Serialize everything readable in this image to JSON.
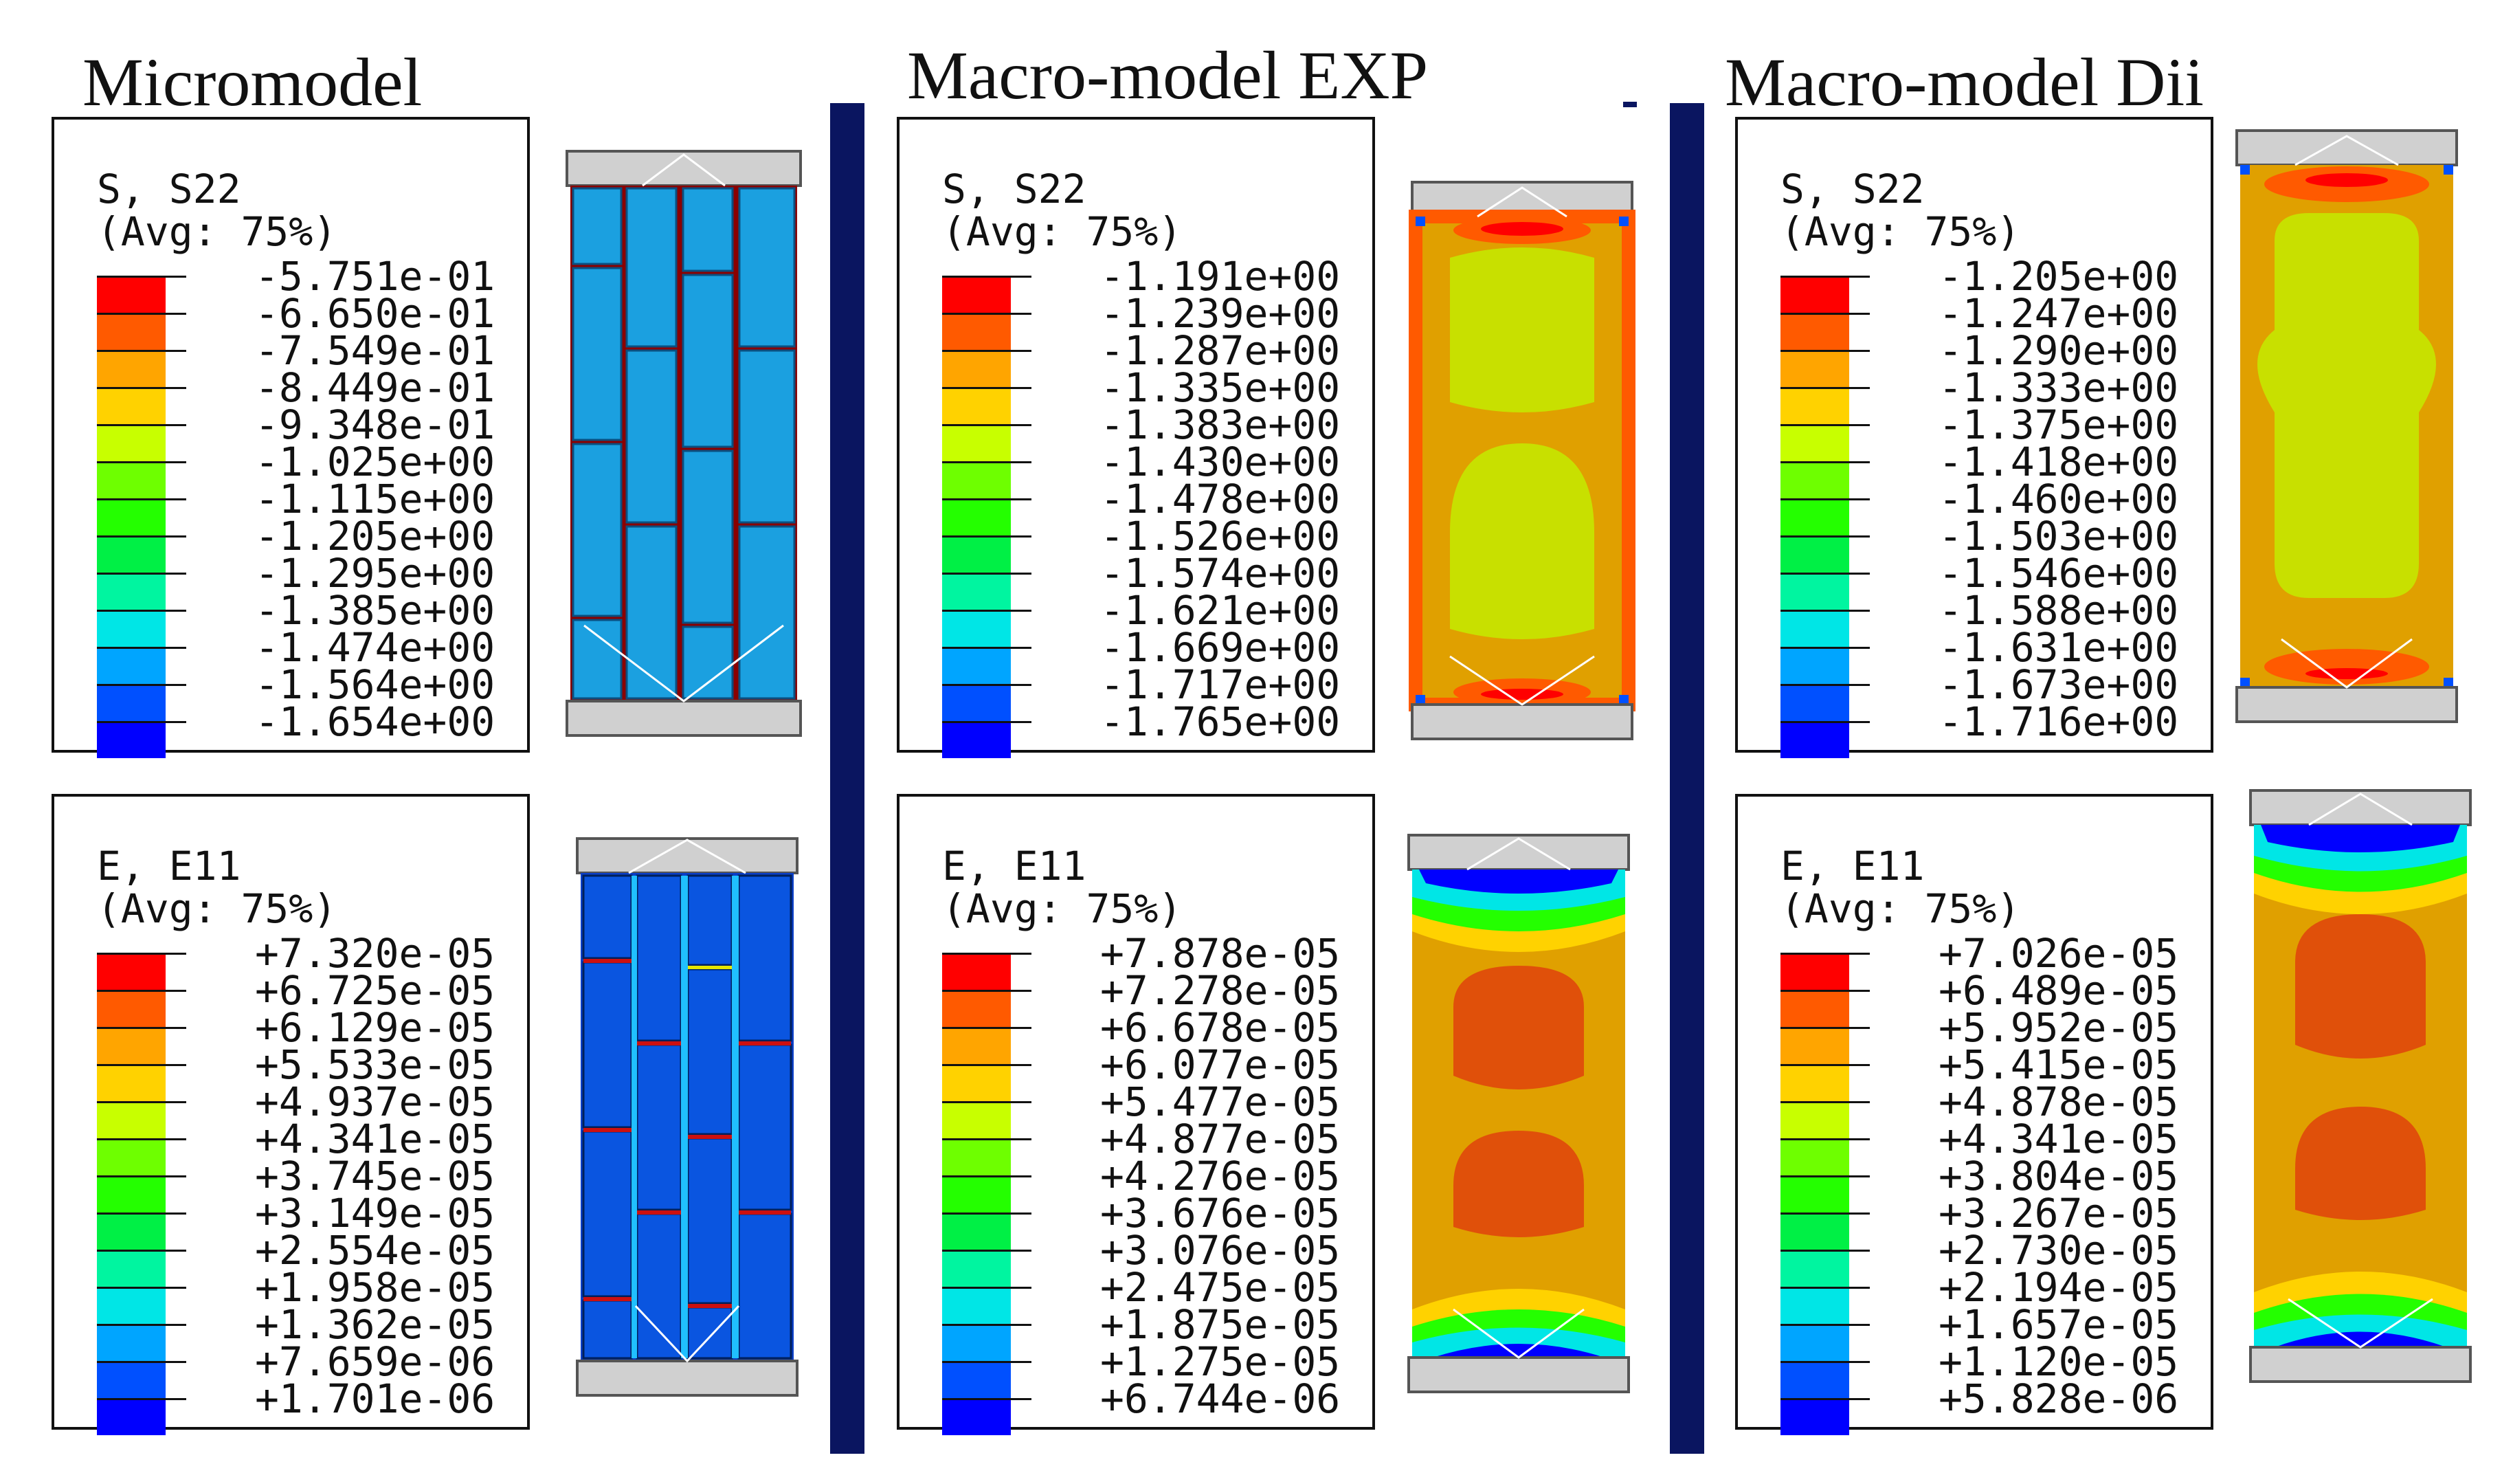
{
  "columns": [
    {
      "title": "Micromodel",
      "stress": {
        "variable": "S, S22",
        "avg": "(Avg: 75%)",
        "levels": [
          "-5.751e-01",
          "-6.650e-01",
          "-7.549e-01",
          "-8.449e-01",
          "-9.348e-01",
          "-1.025e+00",
          "-1.115e+00",
          "-1.205e+00",
          "-1.295e+00",
          "-1.385e+00",
          "-1.474e+00",
          "-1.564e+00",
          "-1.654e+00"
        ]
      },
      "strain": {
        "variable": "E, E11",
        "avg": "(Avg: 75%)",
        "levels": [
          "+7.320e-05",
          "+6.725e-05",
          "+6.129e-05",
          "+5.533e-05",
          "+4.937e-05",
          "+4.341e-05",
          "+3.745e-05",
          "+3.149e-05",
          "+2.554e-05",
          "+1.958e-05",
          "+1.362e-05",
          "+7.659e-06",
          "+1.701e-06"
        ]
      }
    },
    {
      "title": "Macro-model EXP",
      "stress": {
        "variable": "S, S22",
        "avg": "(Avg: 75%)",
        "levels": [
          "-1.191e+00",
          "-1.239e+00",
          "-1.287e+00",
          "-1.335e+00",
          "-1.383e+00",
          "-1.430e+00",
          "-1.478e+00",
          "-1.526e+00",
          "-1.574e+00",
          "-1.621e+00",
          "-1.669e+00",
          "-1.717e+00",
          "-1.765e+00"
        ]
      },
      "strain": {
        "variable": "E, E11",
        "avg": "(Avg: 75%)",
        "levels": [
          "+7.878e-05",
          "+7.278e-05",
          "+6.678e-05",
          "+6.077e-05",
          "+5.477e-05",
          "+4.877e-05",
          "+4.276e-05",
          "+3.676e-05",
          "+3.076e-05",
          "+2.475e-05",
          "+1.875e-05",
          "+1.275e-05",
          "+6.744e-06"
        ]
      }
    },
    {
      "title": "Macro-model Dii",
      "stress": {
        "variable": "S, S22",
        "avg": "(Avg: 75%)",
        "levels": [
          "-1.205e+00",
          "-1.247e+00",
          "-1.290e+00",
          "-1.333e+00",
          "-1.375e+00",
          "-1.418e+00",
          "-1.460e+00",
          "-1.503e+00",
          "-1.546e+00",
          "-1.588e+00",
          "-1.631e+00",
          "-1.673e+00",
          "-1.716e+00"
        ]
      },
      "strain": {
        "variable": "E, E11",
        "avg": "(Avg: 75%)",
        "levels": [
          "+7.026e-05",
          "+6.489e-05",
          "+5.952e-05",
          "+5.415e-05",
          "+4.878e-05",
          "+4.341e-05",
          "+3.804e-05",
          "+3.267e-05",
          "+2.730e-05",
          "+2.194e-05",
          "+1.657e-05",
          "+1.120e-05",
          "+5.828e-06"
        ]
      }
    }
  ],
  "palette": [
    "#ff0000",
    "#ff5a00",
    "#ffa500",
    "#ffd200",
    "#c8ff00",
    "#6eff00",
    "#24ff00",
    "#00f045",
    "#00f5a0",
    "#00e6e6",
    "#00a5ff",
    "#0050ff",
    "#0000ff"
  ],
  "colors": {
    "divider": "#0a1560",
    "micro_brick": "#1ba0e0",
    "micro_brick_strain": "#0a55e0",
    "macro_bg": "#e0a000",
    "platen": "#d0d0d0"
  }
}
